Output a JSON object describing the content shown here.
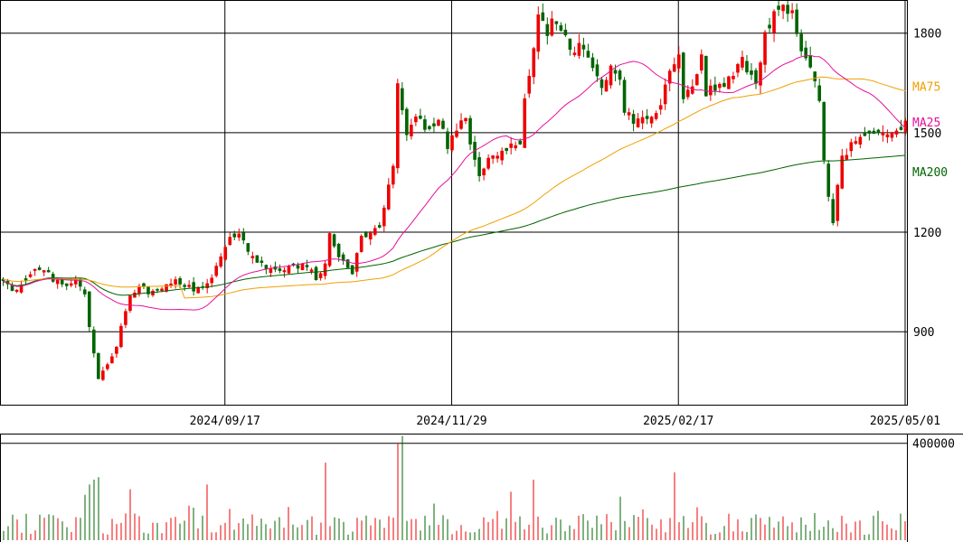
{
  "chart_data": {
    "type": "candlestick",
    "colors": {
      "up": "#ee0000",
      "down": "#006400",
      "ma25": "#e6109b",
      "ma75": "#f0a000",
      "ma200": "#006400",
      "grid": "#000000",
      "volume_up": "#ee0000",
      "volume_down": "#006400"
    },
    "price_axis": {
      "range": [
        680,
        1900
      ],
      "ticks": [
        {
          "value": 1800,
          "label": "1800"
        },
        {
          "value": 1500,
          "label": "1500"
        },
        {
          "value": 1200,
          "label": "1200"
        },
        {
          "value": 900,
          "label": "900"
        }
      ]
    },
    "volume_axis": {
      "range": [
        0,
        440000
      ],
      "ticks": [
        {
          "value": 400000,
          "label": "400000"
        }
      ]
    },
    "date_axis": {
      "labels": [
        {
          "label": "2024/09/17",
          "index": 49
        },
        {
          "label": "2024/11/29",
          "index": 99
        },
        {
          "label": "2025/02/17",
          "index": 149
        },
        {
          "label": "2025/05/01",
          "index": 199
        }
      ]
    },
    "ma_labels": [
      {
        "label": "MA75",
        "value": 1640,
        "color": "#f0a000"
      },
      {
        "label": "MA25",
        "value": 1533,
        "color": "#e6109b"
      },
      {
        "label": "MA200",
        "value": 1383,
        "color": "#006400"
      }
    ],
    "keypoints": [
      [
        0,
        1050
      ],
      [
        3,
        1020
      ],
      [
        6,
        1080
      ],
      [
        8,
        1090
      ],
      [
        10,
        1070
      ],
      [
        12,
        1050
      ],
      [
        14,
        1040
      ],
      [
        16,
        1060
      ],
      [
        18,
        1010
      ],
      [
        19,
        910
      ],
      [
        20,
        830
      ],
      [
        21,
        760
      ],
      [
        23,
        800
      ],
      [
        25,
        850
      ],
      [
        26,
        910
      ],
      [
        27,
        960
      ],
      [
        28,
        1010
      ],
      [
        30,
        1040
      ],
      [
        32,
        1020
      ],
      [
        34,
        1020
      ],
      [
        36,
        1040
      ],
      [
        38,
        1050
      ],
      [
        40,
        1040
      ],
      [
        42,
        1030
      ],
      [
        44,
        1030
      ],
      [
        46,
        1070
      ],
      [
        48,
        1120
      ],
      [
        50,
        1190
      ],
      [
        52,
        1200
      ],
      [
        54,
        1140
      ],
      [
        57,
        1100
      ],
      [
        60,
        1090
      ],
      [
        63,
        1090
      ],
      [
        66,
        1100
      ],
      [
        68,
        1090
      ],
      [
        69,
        1060
      ],
      [
        71,
        1110
      ],
      [
        72,
        1200
      ],
      [
        74,
        1130
      ],
      [
        77,
        1080
      ],
      [
        79,
        1190
      ],
      [
        81,
        1200
      ],
      [
        83,
        1210
      ],
      [
        84,
        1280
      ],
      [
        86,
        1400
      ],
      [
        87,
        1650
      ],
      [
        89,
        1480
      ],
      [
        91,
        1550
      ],
      [
        94,
        1500
      ],
      [
        96,
        1550
      ],
      [
        98,
        1460
      ],
      [
        100,
        1510
      ],
      [
        102,
        1550
      ],
      [
        103,
        1460
      ],
      [
        105,
        1380
      ],
      [
        107,
        1420
      ],
      [
        109,
        1430
      ],
      [
        111,
        1450
      ],
      [
        114,
        1470
      ],
      [
        115,
        1600
      ],
      [
        117,
        1740
      ],
      [
        118,
        1870
      ],
      [
        120,
        1800
      ],
      [
        121,
        1850
      ],
      [
        124,
        1800
      ],
      [
        125,
        1740
      ],
      [
        127,
        1760
      ],
      [
        129,
        1720
      ],
      [
        132,
        1640
      ],
      [
        134,
        1700
      ],
      [
        136,
        1660
      ],
      [
        137,
        1570
      ],
      [
        139,
        1530
      ],
      [
        141,
        1550
      ],
      [
        143,
        1560
      ],
      [
        145,
        1580
      ],
      [
        147,
        1700
      ],
      [
        149,
        1730
      ],
      [
        150,
        1610
      ],
      [
        151,
        1620
      ],
      [
        153,
        1680
      ],
      [
        154,
        1750
      ],
      [
        155,
        1620
      ],
      [
        157,
        1640
      ],
      [
        159,
        1630
      ],
      [
        161,
        1680
      ],
      [
        163,
        1720
      ],
      [
        165,
        1670
      ],
      [
        166,
        1660
      ],
      [
        168,
        1790
      ],
      [
        170,
        1850
      ],
      [
        172,
        1870
      ],
      [
        174,
        1860
      ],
      [
        175,
        1790
      ],
      [
        177,
        1720
      ],
      [
        179,
        1650
      ],
      [
        180,
        1600
      ],
      [
        181,
        1410
      ],
      [
        182,
        1300
      ],
      [
        183,
        1220
      ],
      [
        184,
        1340
      ],
      [
        185,
        1420
      ],
      [
        187,
        1470
      ],
      [
        189,
        1490
      ],
      [
        191,
        1500
      ],
      [
        193,
        1510
      ],
      [
        195,
        1500
      ],
      [
        197,
        1505
      ],
      [
        199,
        1530
      ],
      [
        200,
        1535
      ]
    ]
  }
}
